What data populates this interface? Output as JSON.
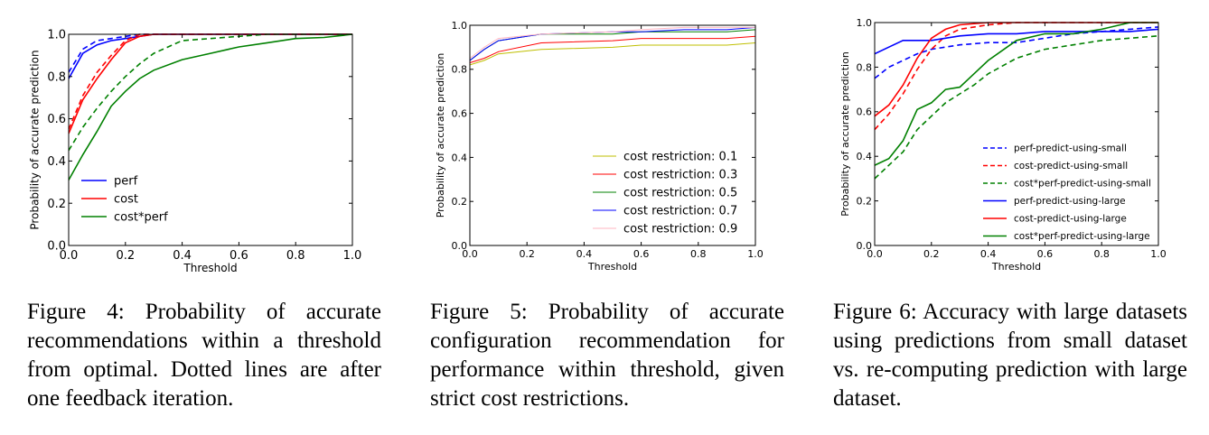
{
  "chart_data": [
    {
      "type": "line",
      "title": "",
      "xlabel": "Threshold",
      "ylabel": "Probability of accurate prediction",
      "xlim": [
        0.0,
        1.0
      ],
      "ylim": [
        0.0,
        1.0
      ],
      "xticks": [
        "0.0",
        "0.2",
        "0.4",
        "0.6",
        "0.8",
        "1.0"
      ],
      "yticks": [
        "0.0",
        "0.2",
        "0.4",
        "0.6",
        "0.8",
        "1.0"
      ],
      "grid": false,
      "legend_position": "lower-left",
      "legend": [
        {
          "label": "perf",
          "color": "#0000ff"
        },
        {
          "label": "cost",
          "color": "#ff0000"
        },
        {
          "label": "cost*perf",
          "color": "#008000"
        }
      ],
      "series": [
        {
          "name": "perf",
          "style": "solid",
          "color": "#0000ff",
          "x": [
            0,
            0.05,
            0.1,
            0.15,
            0.2,
            0.25,
            0.3,
            1.0
          ],
          "y": [
            0.79,
            0.91,
            0.95,
            0.97,
            0.98,
            0.99,
            1.0,
            1.0
          ]
        },
        {
          "name": "perf",
          "style": "dashed",
          "color": "#0000ff",
          "x": [
            0,
            0.05,
            0.1,
            0.15,
            0.2,
            0.25,
            0.3,
            1.0
          ],
          "y": [
            0.82,
            0.93,
            0.97,
            0.98,
            0.99,
            1.0,
            1.0,
            1.0
          ]
        },
        {
          "name": "cost",
          "style": "solid",
          "color": "#ff0000",
          "x": [
            0,
            0.05,
            0.1,
            0.15,
            0.2,
            0.25,
            0.3,
            1.0
          ],
          "y": [
            0.53,
            0.69,
            0.79,
            0.88,
            0.96,
            0.99,
            1.0,
            1.0
          ]
        },
        {
          "name": "cost",
          "style": "dashed",
          "color": "#ff0000",
          "x": [
            0,
            0.05,
            0.1,
            0.15,
            0.2,
            0.25,
            0.3,
            1.0
          ],
          "y": [
            0.55,
            0.71,
            0.82,
            0.9,
            0.97,
            1.0,
            1.0,
            1.0
          ]
        },
        {
          "name": "cost*perf",
          "style": "solid",
          "color": "#008000",
          "x": [
            0,
            0.05,
            0.1,
            0.15,
            0.2,
            0.25,
            0.3,
            0.4,
            0.5,
            0.6,
            0.7,
            0.8,
            0.9,
            1.0
          ],
          "y": [
            0.31,
            0.43,
            0.54,
            0.66,
            0.73,
            0.79,
            0.83,
            0.88,
            0.91,
            0.94,
            0.96,
            0.98,
            0.985,
            1.0
          ]
        },
        {
          "name": "cost*perf",
          "style": "dashed",
          "color": "#008000",
          "x": [
            0,
            0.05,
            0.1,
            0.15,
            0.2,
            0.25,
            0.3,
            0.4,
            0.5,
            0.6,
            0.7,
            1.0
          ],
          "y": [
            0.45,
            0.56,
            0.65,
            0.73,
            0.8,
            0.86,
            0.91,
            0.97,
            0.98,
            0.99,
            1.0,
            1.0
          ]
        }
      ]
    },
    {
      "type": "line",
      "title": "",
      "xlabel": "Threshold",
      "ylabel": "Probability of accurate prediction",
      "xlim": [
        0.0,
        1.0
      ],
      "ylim": [
        0.0,
        1.0
      ],
      "xticks": [
        "0.0",
        "0.2",
        "0.4",
        "0.6",
        "0.8",
        "1.0"
      ],
      "yticks": [
        "0.0",
        "0.2",
        "0.4",
        "0.6",
        "0.8",
        "1.0"
      ],
      "grid": false,
      "legend_position": "lower-right",
      "legend": [
        {
          "label": "cost restriction: 0.1",
          "color": "#bfbf00"
        },
        {
          "label": "cost restriction: 0.3",
          "color": "#ff0000"
        },
        {
          "label": "cost restriction: 0.5",
          "color": "#008000"
        },
        {
          "label": "cost restriction: 0.7",
          "color": "#0000ff"
        },
        {
          "label": "cost restriction: 0.9",
          "color": "#ffb6c1"
        }
      ],
      "series": [
        {
          "name": "cost restriction: 0.1",
          "style": "solid",
          "color": "#bfbf00",
          "x": [
            0,
            0.05,
            0.1,
            0.25,
            0.5,
            0.6,
            0.75,
            0.9,
            1.0
          ],
          "y": [
            0.82,
            0.84,
            0.87,
            0.89,
            0.9,
            0.91,
            0.91,
            0.91,
            0.92
          ]
        },
        {
          "name": "cost restriction: 0.3",
          "style": "solid",
          "color": "#ff0000",
          "x": [
            0,
            0.05,
            0.1,
            0.25,
            0.5,
            0.6,
            0.75,
            0.9,
            1.0
          ],
          "y": [
            0.83,
            0.85,
            0.88,
            0.92,
            0.93,
            0.94,
            0.94,
            0.94,
            0.95
          ]
        },
        {
          "name": "cost restriction: 0.5",
          "style": "solid",
          "color": "#008000",
          "x": [
            0,
            0.05,
            0.1,
            0.25,
            0.5,
            0.6,
            0.75,
            0.9,
            1.0
          ],
          "y": [
            0.84,
            0.89,
            0.93,
            0.96,
            0.96,
            0.97,
            0.97,
            0.97,
            0.98
          ]
        },
        {
          "name": "cost restriction: 0.7",
          "style": "solid",
          "color": "#0000ff",
          "x": [
            0,
            0.05,
            0.1,
            0.25,
            0.5,
            0.6,
            0.75,
            0.9,
            1.0
          ],
          "y": [
            0.84,
            0.89,
            0.93,
            0.96,
            0.97,
            0.97,
            0.98,
            0.98,
            0.99
          ]
        },
        {
          "name": "cost restriction: 0.9",
          "style": "solid",
          "color": "#ffb6c1",
          "x": [
            0,
            0.05,
            0.1,
            0.25,
            0.5,
            0.6,
            0.75,
            0.9,
            1.0
          ],
          "y": [
            0.85,
            0.9,
            0.94,
            0.96,
            0.97,
            0.98,
            0.99,
            0.99,
            0.99
          ]
        }
      ]
    },
    {
      "type": "line",
      "title": "",
      "xlabel": "Threshold",
      "ylabel": "Probability of accurate prediction",
      "xlim": [
        0.0,
        1.0
      ],
      "ylim": [
        0.0,
        1.0
      ],
      "xticks": [
        "0.0",
        "0.2",
        "0.4",
        "0.6",
        "0.8",
        "1.0"
      ],
      "yticks": [
        "0.0",
        "0.2",
        "0.4",
        "0.6",
        "0.8",
        "1.0"
      ],
      "grid": false,
      "legend_position": "lower-right",
      "legend": [
        {
          "label": "perf-predict-using-small",
          "color": "#0000ff",
          "style": "dashed"
        },
        {
          "label": "cost-predict-using-small",
          "color": "#ff0000",
          "style": "dashed"
        },
        {
          "label": "cost*perf-predict-using-small",
          "color": "#008000",
          "style": "dashed"
        },
        {
          "label": "perf-predict-using-large",
          "color": "#0000ff",
          "style": "solid"
        },
        {
          "label": "cost-predict-using-large",
          "color": "#ff0000",
          "style": "solid"
        },
        {
          "label": "cost*perf-predict-using-large",
          "color": "#008000",
          "style": "solid"
        }
      ],
      "series": [
        {
          "name": "perf-predict-using-small",
          "style": "dashed",
          "color": "#0000ff",
          "x": [
            0,
            0.05,
            0.1,
            0.15,
            0.2,
            0.3,
            0.4,
            0.5,
            0.6,
            0.7,
            0.8,
            0.9,
            1.0
          ],
          "y": [
            0.75,
            0.8,
            0.83,
            0.86,
            0.88,
            0.9,
            0.91,
            0.91,
            0.93,
            0.95,
            0.96,
            0.97,
            0.98
          ]
        },
        {
          "name": "cost-predict-using-small",
          "style": "dashed",
          "color": "#ff0000",
          "x": [
            0,
            0.05,
            0.1,
            0.15,
            0.2,
            0.25,
            0.3,
            0.4,
            0.5,
            1.0
          ],
          "y": [
            0.52,
            0.59,
            0.68,
            0.79,
            0.88,
            0.94,
            0.97,
            0.99,
            1.0,
            1.0
          ]
        },
        {
          "name": "cost*perf-predict-using-small",
          "style": "dashed",
          "color": "#008000",
          "x": [
            0,
            0.05,
            0.1,
            0.15,
            0.2,
            0.25,
            0.3,
            0.35,
            0.4,
            0.5,
            0.6,
            0.7,
            0.8,
            0.9,
            1.0
          ],
          "y": [
            0.3,
            0.36,
            0.42,
            0.52,
            0.58,
            0.64,
            0.68,
            0.72,
            0.77,
            0.84,
            0.88,
            0.9,
            0.92,
            0.93,
            0.94
          ]
        },
        {
          "name": "perf-predict-using-large",
          "style": "solid",
          "color": "#0000ff",
          "x": [
            0,
            0.05,
            0.1,
            0.2,
            0.3,
            0.4,
            0.5,
            0.6,
            0.7,
            0.8,
            0.9,
            1.0
          ],
          "y": [
            0.86,
            0.89,
            0.92,
            0.92,
            0.94,
            0.95,
            0.95,
            0.96,
            0.96,
            0.96,
            0.96,
            0.97
          ]
        },
        {
          "name": "cost-predict-using-large",
          "style": "solid",
          "color": "#ff0000",
          "x": [
            0,
            0.05,
            0.1,
            0.15,
            0.2,
            0.25,
            0.3,
            0.4,
            1.0
          ],
          "y": [
            0.58,
            0.63,
            0.72,
            0.84,
            0.93,
            0.97,
            0.99,
            1.0,
            1.0
          ]
        },
        {
          "name": "cost*perf-predict-using-large",
          "style": "solid",
          "color": "#008000",
          "x": [
            0,
            0.05,
            0.1,
            0.15,
            0.2,
            0.25,
            0.3,
            0.35,
            0.4,
            0.5,
            0.6,
            0.7,
            0.8,
            0.9,
            1.0
          ],
          "y": [
            0.36,
            0.39,
            0.47,
            0.61,
            0.64,
            0.7,
            0.71,
            0.77,
            0.83,
            0.92,
            0.95,
            0.95,
            0.97,
            1.0,
            1.0
          ]
        }
      ]
    }
  ],
  "captions": [
    {
      "text": "Figure 4: Probability of accurate recommendations within a threshold from optimal. Dotted lines are after one feedback iteration."
    },
    {
      "text": "Figure 5: Probability of accurate configuration recommendation for performance within threshold, given strict cost restrictions."
    },
    {
      "text": "Figure 6: Accuracy with large datasets using predictions from small dataset vs. re-computing prediction with large dataset."
    }
  ]
}
